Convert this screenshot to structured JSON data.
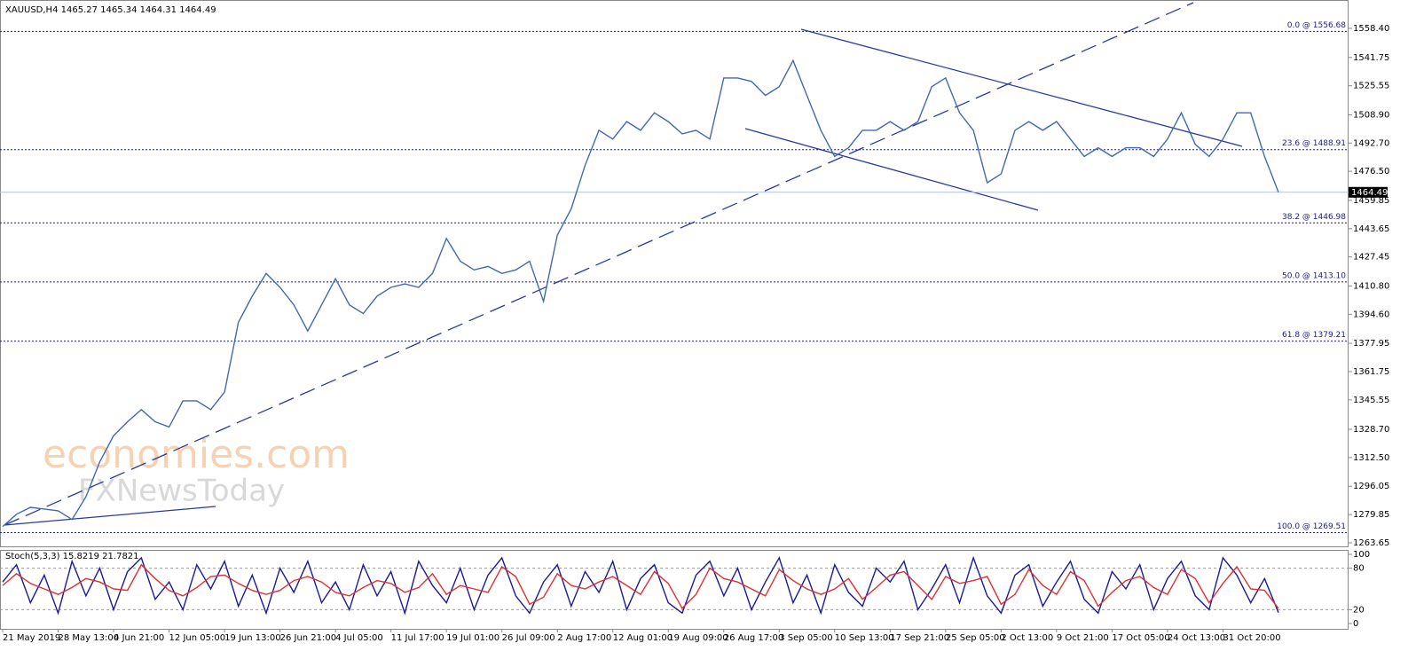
{
  "chart_data": [
    {
      "type": "line",
      "title": "XAUUSD,H4  1465.27 1465.34 1464.31 1464.49",
      "watermark": [
        "economies.com",
        "FXNewsToday"
      ],
      "categories": [
        "21 May 2019",
        null,
        null,
        null,
        "28 May 13:00",
        null,
        null,
        null,
        "4 Jun 21:00",
        null,
        null,
        null,
        "12 Jun 05:00",
        null,
        null,
        null,
        "19 Jun 13:00",
        null,
        null,
        null,
        "26 Jun 21:00",
        null,
        null,
        null,
        "4 Jul 05:00",
        null,
        null,
        null,
        "11 Jul 17:00",
        null,
        null,
        null,
        "19 Jul 01:00",
        null,
        null,
        null,
        "26 Jul 09:00",
        null,
        null,
        null,
        "2 Aug 17:00",
        null,
        null,
        null,
        "12 Aug 01:00",
        null,
        null,
        null,
        "19 Aug 09:00",
        null,
        null,
        null,
        "26 Aug 17:00",
        null,
        null,
        null,
        "3 Sep 05:00",
        null,
        null,
        null,
        "10 Sep 13:00",
        null,
        null,
        null,
        "17 Sep 21:00",
        null,
        null,
        null,
        "25 Sep 05:00",
        null,
        null,
        null,
        "2 Oct 13:00",
        null,
        null,
        null,
        "9 Oct 21:00",
        null,
        null,
        null,
        "17 Oct 05:00",
        null,
        null,
        null,
        "24 Oct 13:00",
        null,
        null,
        null,
        "31 Oct 20:00",
        null,
        null,
        null,
        null
      ],
      "series": [
        {
          "color": "#4169b0",
          "values": [
            1273,
            1280,
            1284,
            1283,
            1282,
            1277,
            1290,
            1310,
            1325,
            1333,
            1340,
            1333,
            1330,
            1345,
            1345,
            1340,
            1350,
            1390,
            1405,
            1418,
            1410,
            1400,
            1385,
            1400,
            1415,
            1400,
            1395,
            1405,
            1410,
            1412,
            1410,
            1418,
            1438,
            1425,
            1420,
            1422,
            1418,
            1420,
            1425,
            1402,
            1440,
            1455,
            1480,
            1500,
            1495,
            1505,
            1500,
            1510,
            1505,
            1498,
            1500,
            1495,
            1530,
            1530,
            1528,
            1520,
            1525,
            1540,
            1520,
            1500,
            1485,
            1490,
            1500,
            1500,
            1505,
            1500,
            1505,
            1525,
            1530,
            1510,
            1500,
            1470,
            1475,
            1500,
            1505,
            1500,
            1505,
            1495,
            1485,
            1490,
            1485,
            1490,
            1490,
            1485,
            1495,
            1510,
            1492,
            1485,
            1495,
            1510,
            1510,
            1485,
            1464.49
          ]
        }
      ],
      "ylim": [
        1261.11,
        1573.14
      ],
      "yticks": [
        {
          "value": 1558.4,
          "label": "1558.40"
        },
        1541.75,
        1525.55,
        {
          "value": 1508.9,
          "label": "1508.90"
        },
        {
          "value": 1492.7,
          "label": "1492.70"
        },
        {
          "value": 1476.5,
          "label": "1476.50"
        },
        1459.85,
        1443.65,
        1427.45,
        {
          "value": 1410.8,
          "label": "1410.80"
        },
        {
          "value": 1394.6,
          "label": "1394.60"
        },
        1377.95,
        1361.75,
        1345.55,
        {
          "value": 1328.7,
          "label": "1328.70"
        },
        {
          "value": 1312.5,
          "label": "1312.50"
        },
        1296.05,
        1279.85,
        1263.65
      ],
      "fib_levels": [
        {
          "value": 1556.68,
          "label": "0.0 @ 1556.68"
        },
        {
          "value": 1488.91,
          "label": "23.6 @ 1488.91"
        },
        {
          "value": 1446.98,
          "label": "38.2 @ 1446.98"
        },
        {
          "value": 1413.1,
          "label": "50.0 @ 1413.10"
        },
        {
          "value": 1379.21,
          "label": "61.8 @ 1379.21"
        },
        {
          "value": 1269.51,
          "label": "100.0 @ 1269.51"
        }
      ],
      "current_price": 1464.49
    },
    {
      "type": "line",
      "title": "Stoch(5,3,3) 15.8219 21.7821",
      "series": [
        {
          "color": "#1a1a9c",
          "values": [
            60,
            85,
            30,
            70,
            15,
            90,
            40,
            80,
            20,
            75,
            95,
            35,
            60,
            20,
            85,
            50,
            90,
            25,
            70,
            15,
            80,
            45,
            90,
            30,
            60,
            20,
            85,
            40,
            75,
            15,
            90,
            55,
            30,
            80,
            20,
            70,
            95,
            40,
            15,
            60,
            85,
            25,
            75,
            45,
            90,
            20,
            65,
            85,
            30,
            15,
            70,
            90,
            40,
            80,
            20,
            60,
            95,
            30,
            70,
            15,
            85,
            45,
            25,
            80,
            60,
            90,
            20,
            50,
            85,
            30,
            95,
            40,
            15,
            70,
            85,
            25,
            60,
            90,
            35,
            15,
            75,
            50,
            85,
            20,
            65,
            90,
            40,
            20,
            95,
            70,
            30,
            65,
            15.8219
          ]
        },
        {
          "color": "#e03030",
          "values": [
            55,
            72,
            58,
            50,
            42,
            52,
            65,
            60,
            50,
            48,
            85,
            65,
            48,
            40,
            52,
            68,
            70,
            58,
            48,
            42,
            48,
            62,
            68,
            60,
            45,
            40,
            52,
            62,
            58,
            45,
            52,
            72,
            42,
            55,
            50,
            45,
            82,
            68,
            28,
            38,
            72,
            55,
            50,
            60,
            68,
            55,
            42,
            75,
            58,
            22,
            42,
            80,
            65,
            60,
            50,
            40,
            78,
            62,
            50,
            42,
            50,
            65,
            35,
            52,
            70,
            75,
            55,
            35,
            68,
            58,
            62,
            68,
            28,
            42,
            78,
            55,
            42,
            75,
            62,
            25,
            45,
            62,
            68,
            52,
            42,
            78,
            65,
            30,
            58,
            82,
            50,
            48,
            21.7821
          ]
        }
      ],
      "ylim": [
        0,
        100
      ],
      "yticks": [
        0,
        20,
        80,
        100
      ]
    }
  ]
}
